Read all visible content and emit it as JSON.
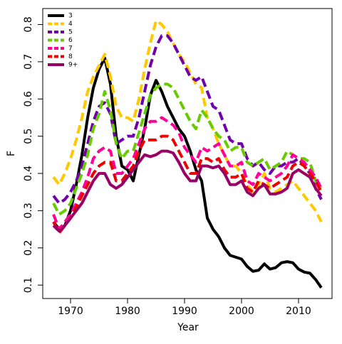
{
  "chart_data": {
    "type": "line",
    "x_label": "Year",
    "y_label": "F",
    "x": [
      1967,
      1968,
      1969,
      1970,
      1971,
      1972,
      1973,
      1974,
      1975,
      1976,
      1977,
      1978,
      1979,
      1980,
      1981,
      1982,
      1983,
      1984,
      1985,
      1986,
      1987,
      1988,
      1989,
      1990,
      1991,
      1992,
      1993,
      1994,
      1995,
      1996,
      1997,
      1998,
      1999,
      2000,
      2001,
      2002,
      2003,
      2004,
      2005,
      2006,
      2007,
      2008,
      2009,
      2010,
      2011,
      2012,
      2013,
      2014
    ],
    "xlim": [
      1965.12,
      2015.88
    ],
    "xticks": [
      1970,
      1980,
      1990,
      2000,
      2010
    ],
    "ylim": [
      0.064,
      0.843
    ],
    "yticks": [
      0.1,
      0.2,
      0.3,
      0.4,
      0.5,
      0.6,
      0.7,
      0.8
    ],
    "legend": "top-left",
    "series": [
      {
        "name": "3",
        "color": "#000000",
        "dashed": false,
        "values": [
          0.27,
          0.25,
          0.26,
          0.3,
          0.37,
          0.45,
          0.55,
          0.63,
          0.68,
          0.71,
          0.64,
          0.5,
          0.42,
          0.41,
          0.38,
          0.45,
          0.52,
          0.61,
          0.65,
          0.62,
          0.58,
          0.55,
          0.52,
          0.5,
          0.46,
          0.41,
          0.38,
          0.28,
          0.25,
          0.23,
          0.2,
          0.18,
          0.175,
          0.17,
          0.15,
          0.137,
          0.14,
          0.157,
          0.143,
          0.147,
          0.16,
          0.163,
          0.16,
          0.143,
          0.135,
          0.132,
          0.115,
          0.093
        ]
      },
      {
        "name": "4",
        "color": "#ffc800",
        "dashed": true,
        "values": [
          0.39,
          0.37,
          0.4,
          0.44,
          0.49,
          0.55,
          0.62,
          0.66,
          0.69,
          0.72,
          0.66,
          0.58,
          0.55,
          0.55,
          0.54,
          0.6,
          0.68,
          0.75,
          0.81,
          0.8,
          0.78,
          0.75,
          0.72,
          0.7,
          0.67,
          0.64,
          0.63,
          0.55,
          0.52,
          0.48,
          0.45,
          0.42,
          0.42,
          0.4,
          0.37,
          0.35,
          0.37,
          0.4,
          0.36,
          0.35,
          0.36,
          0.37,
          0.38,
          0.36,
          0.34,
          0.32,
          0.3,
          0.27
        ]
      },
      {
        "name": "5",
        "color": "#7000a8",
        "dashed": true,
        "values": [
          0.34,
          0.32,
          0.33,
          0.35,
          0.38,
          0.42,
          0.48,
          0.54,
          0.58,
          0.59,
          0.56,
          0.48,
          0.49,
          0.5,
          0.5,
          0.55,
          0.62,
          0.69,
          0.74,
          0.77,
          0.77,
          0.75,
          0.72,
          0.69,
          0.66,
          0.65,
          0.66,
          0.62,
          0.58,
          0.57,
          0.53,
          0.49,
          0.48,
          0.48,
          0.44,
          0.42,
          0.43,
          0.41,
          0.4,
          0.42,
          0.42,
          0.43,
          0.43,
          0.44,
          0.42,
          0.4,
          0.36,
          0.33
        ]
      },
      {
        "name": "6",
        "color": "#66cc00",
        "dashed": true,
        "values": [
          0.32,
          0.29,
          0.3,
          0.32,
          0.36,
          0.4,
          0.45,
          0.52,
          0.56,
          0.62,
          0.57,
          0.48,
          0.44,
          0.46,
          0.46,
          0.51,
          0.56,
          0.61,
          0.63,
          0.64,
          0.64,
          0.63,
          0.6,
          0.57,
          0.54,
          0.52,
          0.57,
          0.55,
          0.52,
          0.5,
          0.49,
          0.46,
          0.47,
          0.47,
          0.43,
          0.42,
          0.43,
          0.44,
          0.41,
          0.42,
          0.43,
          0.46,
          0.45,
          0.44,
          0.44,
          0.43,
          0.38,
          0.36
        ]
      },
      {
        "name": "7",
        "color": "#ff0099",
        "dashed": true,
        "values": [
          0.29,
          0.25,
          0.27,
          0.29,
          0.32,
          0.35,
          0.39,
          0.44,
          0.46,
          0.47,
          0.46,
          0.4,
          0.4,
          0.42,
          0.44,
          0.48,
          0.52,
          0.54,
          0.54,
          0.55,
          0.54,
          0.53,
          0.51,
          0.47,
          0.45,
          0.43,
          0.47,
          0.46,
          0.47,
          0.48,
          0.45,
          0.42,
          0.42,
          0.43,
          0.38,
          0.37,
          0.4,
          0.39,
          0.38,
          0.39,
          0.4,
          0.42,
          0.45,
          0.44,
          0.43,
          0.41,
          0.39,
          0.36
        ]
      },
      {
        "name": "8",
        "color": "#ee0000",
        "dashed": true,
        "values": [
          0.27,
          0.24,
          0.26,
          0.28,
          0.31,
          0.34,
          0.37,
          0.4,
          0.42,
          0.43,
          0.43,
          0.38,
          0.38,
          0.4,
          0.42,
          0.46,
          0.49,
          0.49,
          0.49,
          0.5,
          0.5,
          0.49,
          0.46,
          0.43,
          0.4,
          0.4,
          0.44,
          0.44,
          0.43,
          0.44,
          0.41,
          0.39,
          0.39,
          0.4,
          0.36,
          0.35,
          0.38,
          0.37,
          0.36,
          0.37,
          0.38,
          0.39,
          0.42,
          0.43,
          0.42,
          0.4,
          0.38,
          0.35
        ]
      },
      {
        "name": "9+",
        "color": "#990066",
        "dashed": false,
        "values": [
          0.26,
          0.245,
          0.26,
          0.28,
          0.3,
          0.32,
          0.35,
          0.38,
          0.4,
          0.4,
          0.37,
          0.36,
          0.37,
          0.39,
          0.41,
          0.43,
          0.45,
          0.445,
          0.45,
          0.46,
          0.46,
          0.455,
          0.43,
          0.4,
          0.38,
          0.38,
          0.42,
          0.42,
          0.415,
          0.42,
          0.4,
          0.37,
          0.37,
          0.38,
          0.35,
          0.34,
          0.36,
          0.37,
          0.345,
          0.345,
          0.35,
          0.36,
          0.4,
          0.41,
          0.4,
          0.39,
          0.36,
          0.34
        ]
      }
    ]
  }
}
